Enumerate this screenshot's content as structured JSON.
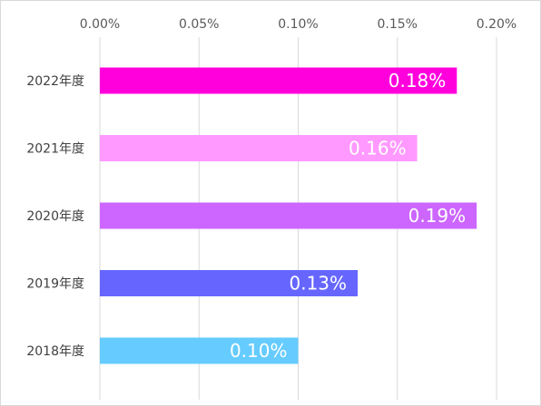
{
  "chart_data": {
    "type": "bar",
    "orientation": "horizontal",
    "title": "",
    "xlabel": "",
    "ylabel": "",
    "xlim": [
      0,
      0.2
    ],
    "x_ticks": [
      "0.00%",
      "0.05%",
      "0.10%",
      "0.15%",
      "0.20%"
    ],
    "x_tick_values": [
      0,
      0.05,
      0.1,
      0.15,
      0.2
    ],
    "x_axis_position": "top",
    "grid": true,
    "legend": "none",
    "categories": [
      "2022年度",
      "2021年度",
      "2020年度",
      "2019年度",
      "2018年度"
    ],
    "values": [
      0.18,
      0.16,
      0.19,
      0.13,
      0.1
    ],
    "data_labels": [
      "0.18%",
      "0.16%",
      "0.19%",
      "0.13%",
      "0.10%"
    ],
    "colors": [
      "#ff00dd",
      "#ff99ff",
      "#cc66ff",
      "#6666ff",
      "#66ccff"
    ]
  }
}
